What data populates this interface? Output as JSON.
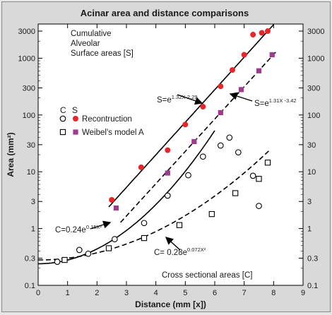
{
  "chart_data": {
    "type": "scatter",
    "title": "Acinar area and distance comparisons",
    "xlabel": "Distance (mm [x])",
    "ylabel": "Area (mm²)",
    "xlim": [
      0,
      9
    ],
    "ylim": [
      0.1,
      4000
    ],
    "yscale": "log",
    "grid": false,
    "x_ticks": [
      "0",
      "1",
      "2",
      "3",
      "4",
      "5",
      "6",
      "7",
      "8",
      "9"
    ],
    "y_ticks": [
      {
        "value": 0.1,
        "label": "0.1"
      },
      {
        "value": 0.3,
        "label": "0.3"
      },
      {
        "value": 1,
        "label": "1"
      },
      {
        "value": 3,
        "label": "3"
      },
      {
        "value": 10,
        "label": "10"
      },
      {
        "value": 30,
        "label": "30"
      },
      {
        "value": 100,
        "label": "100"
      },
      {
        "value": 300,
        "label": "300"
      },
      {
        "value": 1000,
        "label": "1000"
      },
      {
        "value": 3000,
        "label": "3000"
      }
    ],
    "annotations": {
      "cumulative": [
        "Cumulative",
        "Alveolar",
        "Surface areas [S]"
      ],
      "cross": "Cross sectional areas [C]",
      "legend_c": "C",
      "legend_s": "S",
      "legend_recon": "Recontruction",
      "legend_weibel": "Weibel's model A",
      "eq_s1_base": "S=e",
      "eq_s1_exp": "1.32X-2.29",
      "eq_s2_base": "S=e",
      "eq_s2_exp": "1.31X -3.42",
      "eq_c1_base": "C=0.24e",
      "eq_c1_exp": "0.15X²",
      "eq_c2_base": "C= 0.28e",
      "eq_c2_exp": "0.072X²"
    },
    "series": [
      {
        "name": "Recontruction",
        "kind": "S",
        "marker": "filled-circle",
        "color": "#e8262a",
        "points": [
          [
            2.5,
            3.2
          ],
          [
            3.5,
            12
          ],
          [
            4.4,
            24
          ],
          [
            5.0,
            68
          ],
          [
            5.6,
            140
          ],
          [
            6.2,
            320
          ],
          [
            6.6,
            620
          ],
          [
            7.0,
            1150
          ],
          [
            7.3,
            2600
          ],
          [
            7.6,
            2800
          ],
          [
            7.8,
            3000
          ]
        ]
      },
      {
        "name": "Weibel's model A",
        "kind": "S",
        "marker": "filled-square",
        "color": "#a03a8c",
        "points": [
          [
            2.65,
            2.3
          ],
          [
            4.4,
            9.5
          ],
          [
            5.3,
            34
          ],
          [
            6.2,
            110
          ],
          [
            6.9,
            280
          ],
          [
            7.5,
            600
          ],
          [
            7.95,
            1150
          ]
        ]
      },
      {
        "name": "Recontruction",
        "kind": "C",
        "marker": "open-circle",
        "points": [
          [
            0.65,
            0.26
          ],
          [
            1.4,
            0.42
          ],
          [
            1.7,
            0.36
          ],
          [
            2.6,
            0.65
          ],
          [
            3.6,
            1.25
          ],
          [
            4.4,
            3.8
          ],
          [
            5.1,
            8.7
          ],
          [
            5.6,
            18.5
          ],
          [
            6.2,
            29
          ],
          [
            6.5,
            40
          ],
          [
            6.8,
            22
          ],
          [
            7.3,
            8.5
          ],
          [
            7.5,
            2.5
          ]
        ]
      },
      {
        "name": "Weibel's model A",
        "kind": "C",
        "marker": "open-square",
        "points": [
          [
            0.9,
            0.28
          ],
          [
            2.4,
            0.45
          ],
          [
            3.6,
            0.68
          ],
          [
            4.8,
            1.15
          ],
          [
            5.9,
            1.8
          ],
          [
            6.7,
            4.2
          ],
          [
            7.5,
            7.5
          ],
          [
            7.8,
            14.5
          ]
        ]
      }
    ],
    "fits": [
      {
        "label": "S=e^(1.32X-2.29)",
        "style": "solid",
        "a": 1.32,
        "b": -2.29,
        "xmin": 2.4,
        "xmax": 8.1
      },
      {
        "label": "S=e^(1.31X-3.42)",
        "style": "dashed",
        "a": 1.31,
        "b": -3.42,
        "xmin": 2.8,
        "xmax": 8.1
      },
      {
        "label": "C=0.24e^(0.15X²)",
        "style": "solid",
        "coef": 0.24,
        "k": 0.15,
        "xmin": 0,
        "xmax": 6.0
      },
      {
        "label": "C=0.28e^(0.072X²)",
        "style": "dashed",
        "coef": 0.28,
        "k": 0.072,
        "xmin": 0,
        "xmax": 7.9
      }
    ]
  }
}
